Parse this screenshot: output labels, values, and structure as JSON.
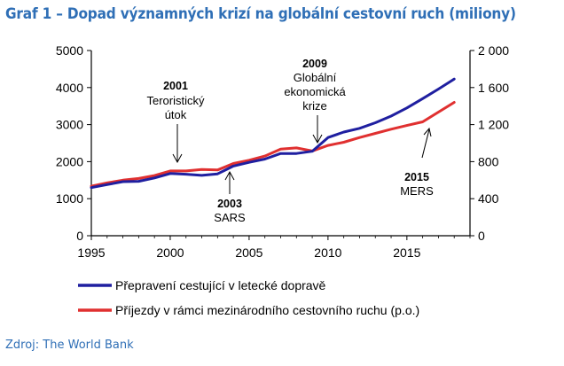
{
  "title": "Graf 1 – Dopad významných krizí na globální cestovní ruch (miliony)",
  "source": "Zdroj: The World Bank",
  "chart_data": {
    "type": "line",
    "title": "Graf 1 – Dopad významných krizí na globální cestovní ruch (miliony)",
    "xlim": [
      1995,
      2019
    ],
    "x_ticks": [
      "1995",
      "2000",
      "2005",
      "2010",
      "2015"
    ],
    "x_tick_values": [
      1995,
      2000,
      2005,
      2010,
      2015
    ],
    "ylim_left": [
      0,
      5000
    ],
    "y_left_ticks": [
      "0",
      "1000",
      "2000",
      "3000",
      "4000",
      "5000"
    ],
    "y_left_tick_values": [
      0,
      1000,
      2000,
      3000,
      4000,
      5000
    ],
    "ylim_right": [
      0,
      2000
    ],
    "y_right_ticks": [
      "0",
      "400",
      "800",
      "1 200",
      "1 600",
      "2 000"
    ],
    "y_right_tick_values": [
      0,
      400,
      800,
      1200,
      1600,
      2000
    ],
    "grid": false,
    "legend_position": "bottom",
    "series": [
      {
        "name": "Přepravení cestující v letecké dopravě",
        "color": "#1f1fa0",
        "axis": "left",
        "x": [
          1995,
          1996,
          1997,
          1998,
          1999,
          2000,
          2001,
          2002,
          2003,
          2004,
          2005,
          2006,
          2007,
          2008,
          2009,
          2010,
          2011,
          2012,
          2013,
          2014,
          2015,
          2016,
          2017,
          2018
        ],
        "values": [
          1300,
          1380,
          1460,
          1470,
          1560,
          1680,
          1660,
          1630,
          1670,
          1880,
          1980,
          2070,
          2220,
          2220,
          2280,
          2650,
          2800,
          2900,
          3050,
          3230,
          3450,
          3700,
          3960,
          4230
        ]
      },
      {
        "name": "Příjezdy v rámci mezinárodního cestovního ruchu (p.o.)",
        "color": "#e03030",
        "axis": "right",
        "x": [
          1995,
          1996,
          1997,
          1998,
          1999,
          2000,
          2001,
          2002,
          2003,
          2004,
          2005,
          2006,
          2007,
          2008,
          2009,
          2010,
          2011,
          2012,
          2013,
          2014,
          2015,
          2016,
          2017,
          2018
        ],
        "values": [
          535,
          570,
          600,
          618,
          650,
          700,
          700,
          715,
          710,
          780,
          815,
          860,
          935,
          948,
          915,
          975,
          1010,
          1060,
          1105,
          1150,
          1190,
          1230,
          1335,
          1440
        ]
      }
    ],
    "annotations": [
      {
        "year_label": "2001",
        "text": [
          "Teroristický",
          "útok"
        ]
      },
      {
        "year_label": "2003",
        "text": [
          "SARS"
        ]
      },
      {
        "year_label": "2009",
        "text": [
          "Globální",
          "ekonomická",
          "krize"
        ]
      },
      {
        "year_label": "2015",
        "text": [
          "MERS"
        ]
      }
    ]
  }
}
